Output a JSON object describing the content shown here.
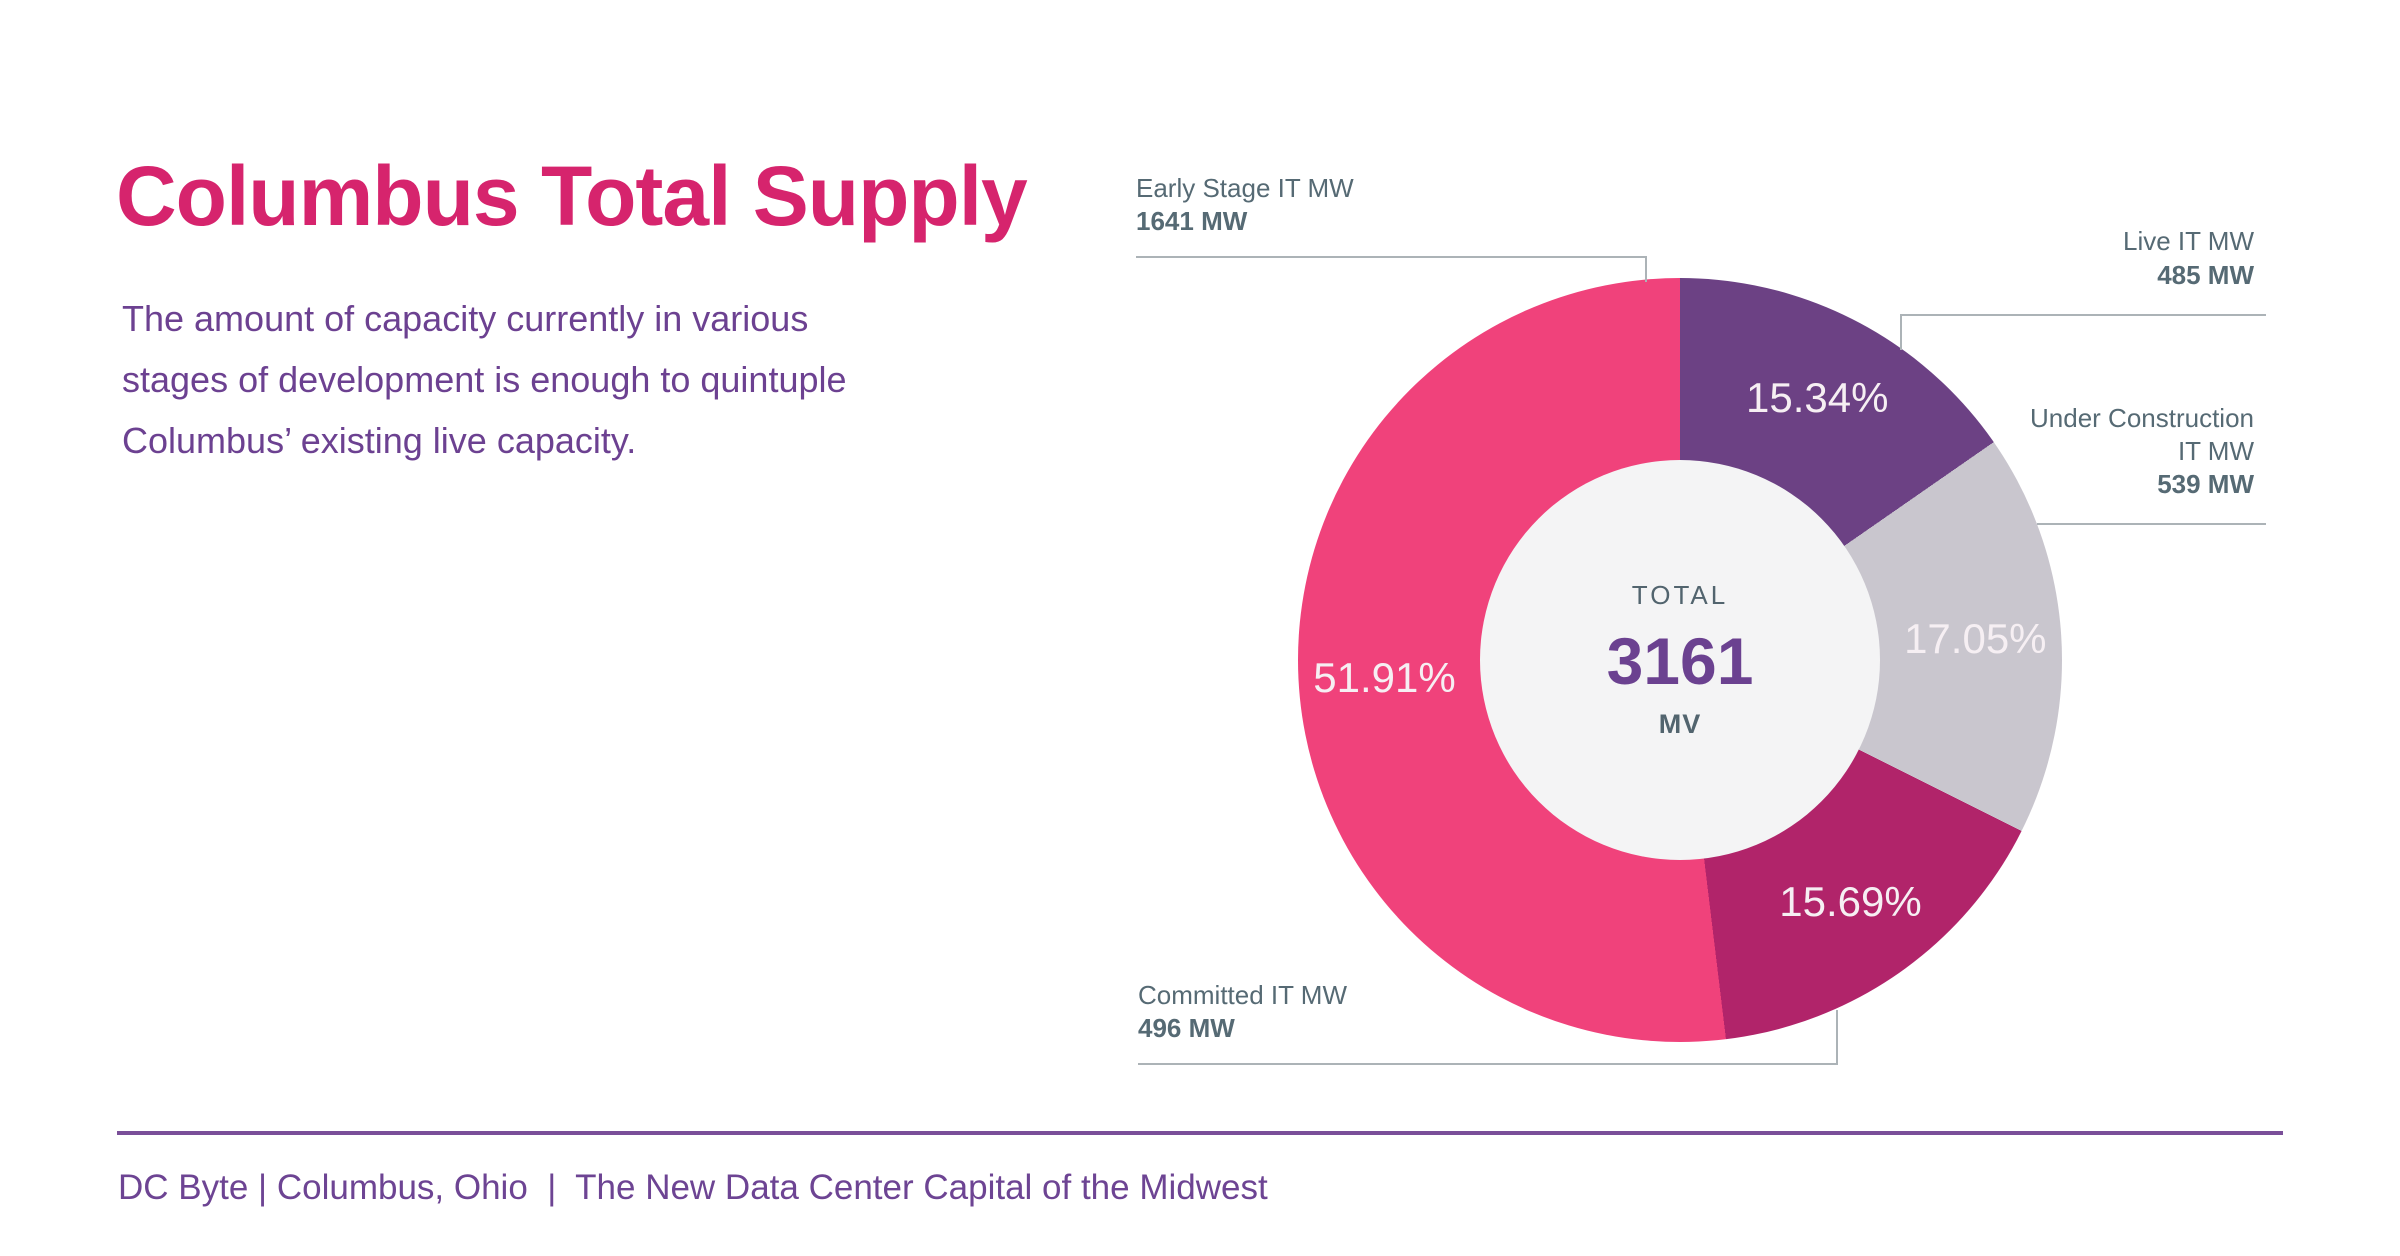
{
  "slide": {
    "title": "Columbus Total Supply",
    "subtitle_lines": [
      "The amount of capacity currently in various",
      "stages of development is enough to quintuple",
      "Columbus’ existing live capacity."
    ],
    "footer_text": "DC Byte | Columbus, Ohio  |  The New Data Center Capital of the Midwest"
  },
  "colors": {
    "title_pink": "#D6246D",
    "body_purple": "#6C4191",
    "label_slate": "#566A74",
    "footer_purple": "#6D4493",
    "divider_purple": "#7A4F99",
    "hole_fill": "#F4F4F5",
    "callout_line_gray": "#ACB3B7",
    "slice_percent_text": "#F6EFF3"
  },
  "callouts": {
    "early_stage": {
      "label": "Early Stage IT MW",
      "value": "1641 MW"
    },
    "live": {
      "label": "Live IT MW",
      "value": "485 MW"
    },
    "under_construction": {
      "label_line1": "Under Construction",
      "label_line2": "IT MW",
      "value": "539 MW"
    },
    "committed": {
      "label": "Committed IT MW",
      "value": "496 MW"
    }
  },
  "chart_data": {
    "type": "pie",
    "variant": "donut",
    "title": "Columbus Total Supply",
    "units": "MW",
    "total": 3161,
    "center": {
      "label": "TOTAL",
      "value": "3161",
      "unit": "MV"
    },
    "start_angle_deg": 0,
    "direction": "clockwise",
    "donut_hole_ratio": 0.52,
    "legend_position": "callouts",
    "slices": [
      {
        "label": "Live IT MW",
        "value": 485,
        "percent": 15.34,
        "percent_label": "15.34%",
        "color": "#6C4184"
      },
      {
        "label": "Under Construction IT MW",
        "value": 539,
        "percent": 17.05,
        "percent_label": "17.05%",
        "color": "#C9C6CE"
      },
      {
        "label": "Committed IT MW",
        "value": 496,
        "percent": 15.69,
        "percent_label": "15.69%",
        "color": "#B1246A"
      },
      {
        "label": "Early Stage IT MW",
        "value": 1641,
        "percent": 51.91,
        "percent_label": "51.91%",
        "color": "#F0427B"
      }
    ]
  }
}
